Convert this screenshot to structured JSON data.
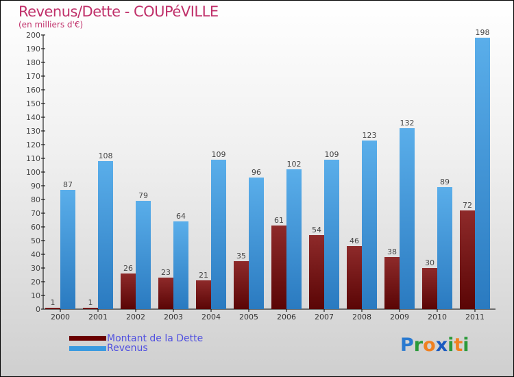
{
  "title": "Revenus/Dette - COUPéVILLE",
  "subtitle": "(en milliers d'€)",
  "logo": "Proxiti",
  "chart_data": {
    "type": "bar",
    "title": "Revenus/Dette - COUPéVILLE",
    "ylabel": "(en milliers d'€)",
    "ylim": [
      0,
      200
    ],
    "yticks": [
      0,
      10,
      20,
      30,
      40,
      50,
      60,
      70,
      80,
      90,
      100,
      110,
      120,
      130,
      140,
      150,
      160,
      170,
      180,
      190,
      200
    ],
    "categories": [
      "2000",
      "2001",
      "2002",
      "2003",
      "2004",
      "2005",
      "2006",
      "2007",
      "2008",
      "2009",
      "2010",
      "2011"
    ],
    "series": [
      {
        "name": "Montant de la Dette",
        "color": "#7a1a1a",
        "values": [
          1,
          1,
          26,
          23,
          21,
          35,
          61,
          54,
          46,
          38,
          30,
          72
        ]
      },
      {
        "name": "Revenus",
        "color": "#3a9ae0",
        "values": [
          87,
          108,
          79,
          64,
          109,
          96,
          102,
          109,
          123,
          132,
          89,
          198
        ]
      }
    ],
    "legend": "bottom-left"
  }
}
